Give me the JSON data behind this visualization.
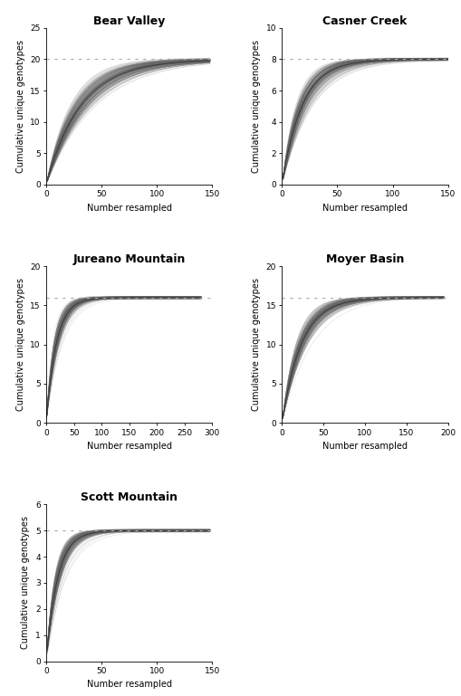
{
  "panels": [
    {
      "title": "Bear Valley",
      "xlim": [
        0,
        150
      ],
      "ylim": [
        0,
        25
      ],
      "yticks": [
        0,
        5,
        10,
        15,
        20,
        25
      ],
      "xticks": [
        0,
        50,
        100,
        150
      ],
      "asymptote": 20,
      "n_total": 148,
      "n_unique": 20,
      "curve_k": 0.032
    },
    {
      "title": "Casner Creek",
      "xlim": [
        0,
        150
      ],
      "ylim": [
        0,
        10
      ],
      "yticks": [
        0,
        2,
        4,
        6,
        8,
        10
      ],
      "xticks": [
        0,
        50,
        100,
        150
      ],
      "asymptote": 8,
      "n_total": 150,
      "n_unique": 8,
      "curve_k": 0.055
    },
    {
      "title": "Jureano Mountain",
      "xlim": [
        0,
        300
      ],
      "ylim": [
        0,
        20
      ],
      "yticks": [
        0,
        5,
        10,
        15,
        20
      ],
      "xticks": [
        0,
        50,
        100,
        150,
        200,
        250,
        300
      ],
      "asymptote": 16,
      "n_total": 280,
      "n_unique": 16,
      "curve_k": 0.055
    },
    {
      "title": "Moyer Basin",
      "xlim": [
        0,
        200
      ],
      "ylim": [
        0,
        20
      ],
      "yticks": [
        0,
        5,
        10,
        15,
        20
      ],
      "xticks": [
        0,
        50,
        100,
        150,
        200
      ],
      "asymptote": 16,
      "n_total": 195,
      "n_unique": 16,
      "curve_k": 0.042
    },
    {
      "title": "Scott Mountain",
      "xlim": [
        0,
        150
      ],
      "ylim": [
        0,
        6
      ],
      "yticks": [
        0,
        1,
        2,
        3,
        4,
        5,
        6
      ],
      "xticks": [
        0,
        50,
        100,
        150
      ],
      "asymptote": 5,
      "n_total": 148,
      "n_unique": 5,
      "curve_k": 0.1
    }
  ],
  "xlabel": "Number resampled",
  "ylabel": "Cumulative unique genotypes",
  "title_fontsize": 9,
  "label_fontsize": 7,
  "tick_fontsize": 6.5,
  "curve_color": "#333333",
  "band_color": "#666666",
  "dashed_color": "#aaaaaa",
  "n_sim": 200
}
